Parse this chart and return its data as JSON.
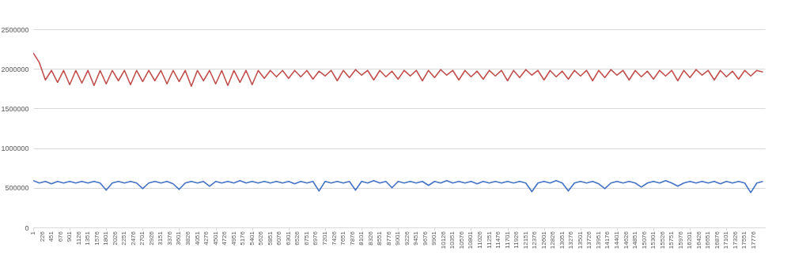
{
  "chart_data": {
    "type": "line",
    "x": [
      1,
      151,
      301,
      451,
      601,
      751,
      901,
      1051,
      1201,
      1351,
      1501,
      1651,
      1801,
      1951,
      2101,
      2251,
      2401,
      2551,
      2701,
      2851,
      3001,
      3151,
      3301,
      3451,
      3601,
      3751,
      3901,
      4051,
      4201,
      4351,
      4501,
      4651,
      4801,
      4951,
      5101,
      5251,
      5401,
      5551,
      5701,
      5851,
      6001,
      6151,
      6301,
      6451,
      6601,
      6751,
      6901,
      7051,
      7201,
      7351,
      7501,
      7651,
      7801,
      7951,
      8101,
      8251,
      8401,
      8551,
      8701,
      8851,
      9001,
      9151,
      9301,
      9451,
      9601,
      9751,
      9901,
      10051,
      10201,
      10351,
      10501,
      10651,
      10801,
      10951,
      11101,
      11251,
      11401,
      11551,
      11701,
      11851,
      12001,
      12151,
      12301,
      12451,
      12601,
      12751,
      12901,
      13051,
      13201,
      13351,
      13501,
      13651,
      13801,
      13951,
      14101,
      14251,
      14401,
      14551,
      14701,
      14851,
      15001,
      15151,
      15301,
      15451,
      15601,
      15751,
      15901,
      16051,
      16201,
      16351,
      16501,
      16651,
      16801,
      16951,
      17101,
      17251,
      17401,
      17551,
      17701,
      17851,
      18001
    ],
    "series": [
      {
        "color": "#4472c4",
        "values": [
          590000,
          560000,
          580000,
          550000,
          580000,
          560000,
          580000,
          560000,
          580000,
          560000,
          580000,
          560000,
          470000,
          560000,
          580000,
          560000,
          580000,
          560000,
          490000,
          560000,
          580000,
          560000,
          580000,
          550000,
          480000,
          560000,
          580000,
          560000,
          580000,
          520000,
          580000,
          560000,
          580000,
          560000,
          590000,
          560000,
          580000,
          560000,
          580000,
          560000,
          580000,
          560000,
          580000,
          550000,
          580000,
          560000,
          580000,
          460000,
          580000,
          560000,
          580000,
          560000,
          580000,
          470000,
          580000,
          560000,
          590000,
          560000,
          580000,
          500000,
          580000,
          560000,
          580000,
          560000,
          580000,
          530000,
          580000,
          560000,
          590000,
          560000,
          580000,
          560000,
          580000,
          550000,
          580000,
          560000,
          580000,
          560000,
          580000,
          560000,
          580000,
          560000,
          450000,
          560000,
          580000,
          560000,
          590000,
          560000,
          460000,
          560000,
          580000,
          560000,
          580000,
          550000,
          490000,
          560000,
          580000,
          560000,
          580000,
          560000,
          510000,
          560000,
          580000,
          560000,
          590000,
          560000,
          520000,
          560000,
          580000,
          560000,
          580000,
          560000,
          580000,
          550000,
          580000,
          560000,
          580000,
          560000,
          440000,
          560000,
          580000
        ]
      },
      {
        "color": "#c0504d",
        "values": [
          2200000,
          2080000,
          1860000,
          1980000,
          1830000,
          1980000,
          1800000,
          1980000,
          1820000,
          1980000,
          1790000,
          1980000,
          1810000,
          1980000,
          1850000,
          1980000,
          1800000,
          1980000,
          1840000,
          1980000,
          1850000,
          1980000,
          1810000,
          1980000,
          1840000,
          1980000,
          1780000,
          1980000,
          1850000,
          1980000,
          1810000,
          1980000,
          1790000,
          1980000,
          1830000,
          1980000,
          1800000,
          1980000,
          1880000,
          1980000,
          1900000,
          1980000,
          1880000,
          1980000,
          1900000,
          1980000,
          1870000,
          1970000,
          1910000,
          1980000,
          1850000,
          1980000,
          1890000,
          1990000,
          1920000,
          1980000,
          1860000,
          1980000,
          1900000,
          1970000,
          1870000,
          1980000,
          1910000,
          1980000,
          1850000,
          1980000,
          1890000,
          1990000,
          1920000,
          1980000,
          1860000,
          1980000,
          1900000,
          1970000,
          1870000,
          1980000,
          1910000,
          1980000,
          1850000,
          1980000,
          1890000,
          1990000,
          1920000,
          1980000,
          1860000,
          1980000,
          1900000,
          1970000,
          1870000,
          1980000,
          1910000,
          1980000,
          1850000,
          1980000,
          1890000,
          1990000,
          1920000,
          1980000,
          1860000,
          1980000,
          1900000,
          1970000,
          1870000,
          1980000,
          1910000,
          1980000,
          1850000,
          1980000,
          1890000,
          1990000,
          1920000,
          1980000,
          1860000,
          1980000,
          1900000,
          1970000,
          1870000,
          1980000,
          1910000,
          1980000,
          1960000
        ]
      }
    ],
    "xlim": [
      1,
      18050
    ],
    "xticks": [
      1,
      226,
      451,
      676,
      901,
      1126,
      1351,
      1576,
      1801,
      2026,
      2251,
      2476,
      2701,
      2926,
      3151,
      3376,
      3601,
      3826,
      4051,
      4276,
      4501,
      4726,
      4951,
      5176,
      5401,
      5626,
      5851,
      6076,
      6301,
      6526,
      6751,
      6976,
      7201,
      7426,
      7651,
      7876,
      8101,
      8326,
      8551,
      8776,
      9001,
      9226,
      9451,
      9676,
      9901,
      10126,
      10351,
      10576,
      10801,
      11026,
      11251,
      11476,
      11701,
      11926,
      12151,
      12376,
      12601,
      12826,
      13051,
      13276,
      13501,
      13726,
      13951,
      14176,
      14401,
      14626,
      14851,
      15076,
      15301,
      15526,
      15751,
      15976,
      16201,
      16426,
      16651,
      16876,
      17101,
      17326,
      17551,
      17776
    ],
    "ylim": [
      0,
      2500000
    ],
    "yticks": [
      0,
      500000,
      1000000,
      1500000,
      2000000,
      2500000
    ],
    "grid": "y"
  }
}
